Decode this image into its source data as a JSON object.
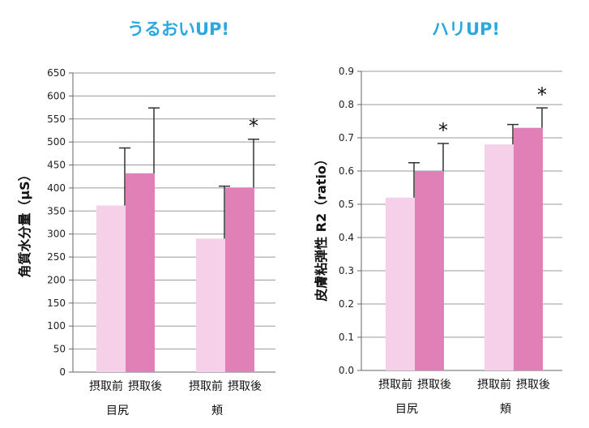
{
  "chart_data": [
    {
      "type": "bar",
      "title": "うるおいUP!",
      "ylabel": "角質水分量（μS）",
      "ylim": [
        0,
        650
      ],
      "yticks": [
        0,
        50,
        100,
        150,
        200,
        250,
        300,
        350,
        400,
        450,
        500,
        550,
        600,
        650
      ],
      "groups": [
        "目尻",
        "頬"
      ],
      "series_labels": [
        "摂取前",
        "摂取後"
      ],
      "series": [
        {
          "values": [
            362,
            290
          ],
          "error_upper": [
            487,
            404
          ]
        },
        {
          "values": [
            432,
            401
          ],
          "error_upper": [
            574,
            506
          ]
        }
      ],
      "significance": [
        {
          "group": "頬",
          "series": 1,
          "label": "*"
        }
      ],
      "grid": true
    },
    {
      "type": "bar",
      "title": "ハリUP!",
      "ylabel": "皮膚粘弾性 R2（ratio）",
      "ylim": [
        0,
        0.9
      ],
      "yticks": [
        0,
        0.1,
        0.2,
        0.3,
        0.4,
        0.5,
        0.6,
        0.7,
        0.8,
        0.9
      ],
      "groups": [
        "目尻",
        "頬"
      ],
      "series_labels": [
        "摂取前",
        "摂取後"
      ],
      "series": [
        {
          "values": [
            0.52,
            0.68
          ],
          "error_upper": [
            0.625,
            0.74
          ]
        },
        {
          "values": [
            0.6,
            0.73
          ],
          "error_upper": [
            0.683,
            0.79
          ]
        }
      ],
      "significance": [
        {
          "group": "目尻",
          "series": 1,
          "label": "*"
        },
        {
          "group": "頬",
          "series": 1,
          "label": "*"
        }
      ],
      "grid": true
    }
  ],
  "colors": {
    "title": "#2aa9e0",
    "before": "#f5d0e8",
    "after": "#e080b6",
    "grid": "#9a9a9a",
    "axis": "#666666",
    "error": "#333333"
  }
}
